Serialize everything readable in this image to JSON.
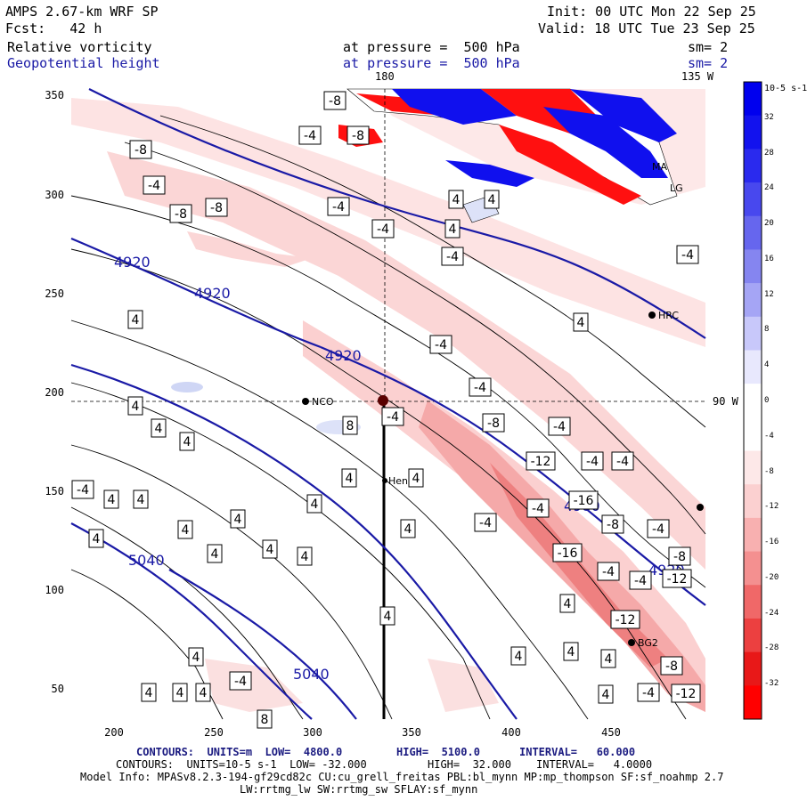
{
  "header": {
    "model": "AMPS 2.67-km WRF SP",
    "forecast": "Fcst:   42 h",
    "field1": "Relative vorticity",
    "field2": "Geopotential height",
    "pressure1": "at pressure =  500 hPa",
    "pressure2": "at pressure =  500 hPa",
    "init": "Init: 00 UTC Mon 22 Sep 25",
    "valid": "Valid: 18 UTC Tue 23 Sep 25",
    "sm1": "sm= 2",
    "sm2": "sm= 2"
  },
  "map": {
    "top_labels": [
      "180",
      "135 W"
    ],
    "right_label": "90 W",
    "x_ticks": [
      "200",
      "250",
      "300",
      "350",
      "400",
      "450"
    ],
    "y_ticks": [
      "350",
      "300",
      "250",
      "200",
      "150",
      "100",
      "50"
    ],
    "stations": [
      "NCO",
      "Henry",
      "HRC",
      "BG2",
      "MA",
      "LG"
    ],
    "height_labels": [
      "4920",
      "4920",
      "4920",
      "5040",
      "5040",
      "4980",
      "4920"
    ],
    "vorticity_labels": [
      "-8",
      "-4",
      "-8",
      "-4",
      "-8",
      "-8",
      "-4",
      "-8",
      "-4",
      "4",
      "-4",
      "4",
      "4",
      "-4",
      "-4",
      "4",
      "-4",
      "8",
      "-4",
      "-8",
      "-4",
      "-12",
      "-4",
      "-4",
      "-12",
      "-16",
      "-4",
      "-8",
      "-16",
      "-4",
      "-8",
      "-4",
      "-12",
      "-8",
      "-12",
      "-4",
      "4",
      "4",
      "4",
      "4",
      "4",
      "4",
      "4",
      "4",
      "4",
      "4",
      "4",
      "4",
      "4",
      "4",
      "4",
      "4",
      "4",
      "-4",
      "-4",
      "4",
      "4",
      "4",
      "4",
      "-4",
      "4",
      "4",
      "4",
      "4",
      "4",
      "-4",
      "8"
    ]
  },
  "colorbar": {
    "unit": "10-5 s-1",
    "labels": [
      "32",
      "28",
      "24",
      "20",
      "16",
      "12",
      "8",
      "4",
      "0",
      "-4",
      "-8",
      "-12",
      "-16",
      "-20",
      "-24",
      "-28",
      "-32"
    ]
  },
  "footer": {
    "line1_a": "CONTOURS:  UNITS=m  LOW=  4800.0",
    "line1_b": "HIGH=  5100.0",
    "line1_c": "INTERVAL=   60.000",
    "line2_a": "CONTOURS:  UNITS=10-5 s-1  LOW= -32.000",
    "line2_b": "HIGH=  32.000",
    "line2_c": "INTERVAL=   4.0000",
    "model_info": "Model Info: MPASv8.2.3-194-gf29cd82c CU:cu_grell_freitas PBL:bl_mynn MP:mp_thompson SF:sf_noahmp 2.7",
    "model_info2": "LW:rrtmg_lw SW:rrtmg_sw SFLAY:sf_mynn"
  }
}
